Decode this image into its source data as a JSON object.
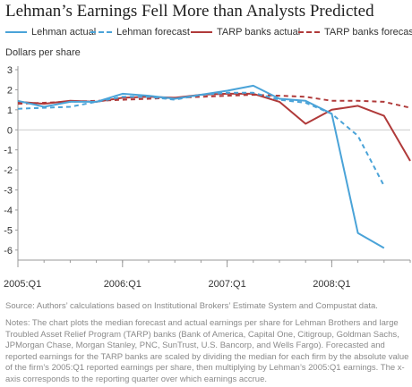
{
  "chart_data": {
    "type": "line",
    "title": "Lehman’s Earnings Fell More than Analysts Predicted",
    "ylabel": "Dollars per share",
    "ylim": [
      -6.5,
      3
    ],
    "yticks": [
      "3",
      "2",
      "1",
      "0",
      "-1",
      "-2",
      "-3",
      "-4",
      "-5",
      "-6"
    ],
    "xticks": [
      "2005:Q1",
      "2006:Q1",
      "2007:Q1",
      "2008:Q1"
    ],
    "x": [
      "2005:Q1",
      "2005:Q2",
      "2005:Q3",
      "2005:Q4",
      "2006:Q1",
      "2006:Q2",
      "2006:Q3",
      "2006:Q4",
      "2007:Q1",
      "2007:Q2",
      "2007:Q3",
      "2007:Q4",
      "2008:Q1",
      "2008:Q2",
      "2008:Q3",
      "2008:Q4"
    ],
    "series": [
      {
        "name": "Lehman actual",
        "color": "#4aa3d8",
        "dash": false,
        "values": [
          1.45,
          1.15,
          1.4,
          1.4,
          1.8,
          1.7,
          1.55,
          1.75,
          1.95,
          2.2,
          1.55,
          1.45,
          0.8,
          -5.15,
          -5.9,
          null
        ]
      },
      {
        "name": "Lehman forecast",
        "color": "#4aa3d8",
        "dash": true,
        "values": [
          1.05,
          1.1,
          1.15,
          1.4,
          1.65,
          1.65,
          1.5,
          1.75,
          1.85,
          1.85,
          1.5,
          1.35,
          0.8,
          -0.3,
          -2.8,
          null
        ]
      },
      {
        "name": "TARP banks actual",
        "color": "#b03a3a",
        "dash": false,
        "values": [
          1.4,
          1.3,
          1.45,
          1.4,
          1.6,
          1.65,
          1.6,
          1.75,
          1.8,
          1.8,
          1.4,
          0.3,
          1.0,
          1.2,
          0.7,
          -1.55
        ]
      },
      {
        "name": "TARP banks forecast",
        "color": "#b03a3a",
        "dash": true,
        "values": [
          1.3,
          1.35,
          1.4,
          1.45,
          1.5,
          1.55,
          1.6,
          1.65,
          1.7,
          1.75,
          1.7,
          1.65,
          1.45,
          1.45,
          1.4,
          1.1
        ]
      }
    ]
  },
  "source": "Source: Authors’ calculations based on Institutional Brokers’ Estimate System and Compustat data.",
  "notes": "Notes: The chart plots the median forecast and actual earnings per share for Lehman Brothers and large Troubled Asset Relief Program (TARP) banks (Bank of America, Capital One, Citigroup, Goldman Sachs, JPMorgan Chase, Morgan Stanley, PNC, SunTrust, U.S. Bancorp, and Wells Fargo). Forecasted and reported earnings for the TARP banks are scaled by dividing the median for each firm by the absolute value of the firm’s 2005:Q1 reported earnings per share, then multiplying by Lehman’s 2005:Q1 earnings. The x-axis corresponds to the reporting quarter over which earnings accrue."
}
